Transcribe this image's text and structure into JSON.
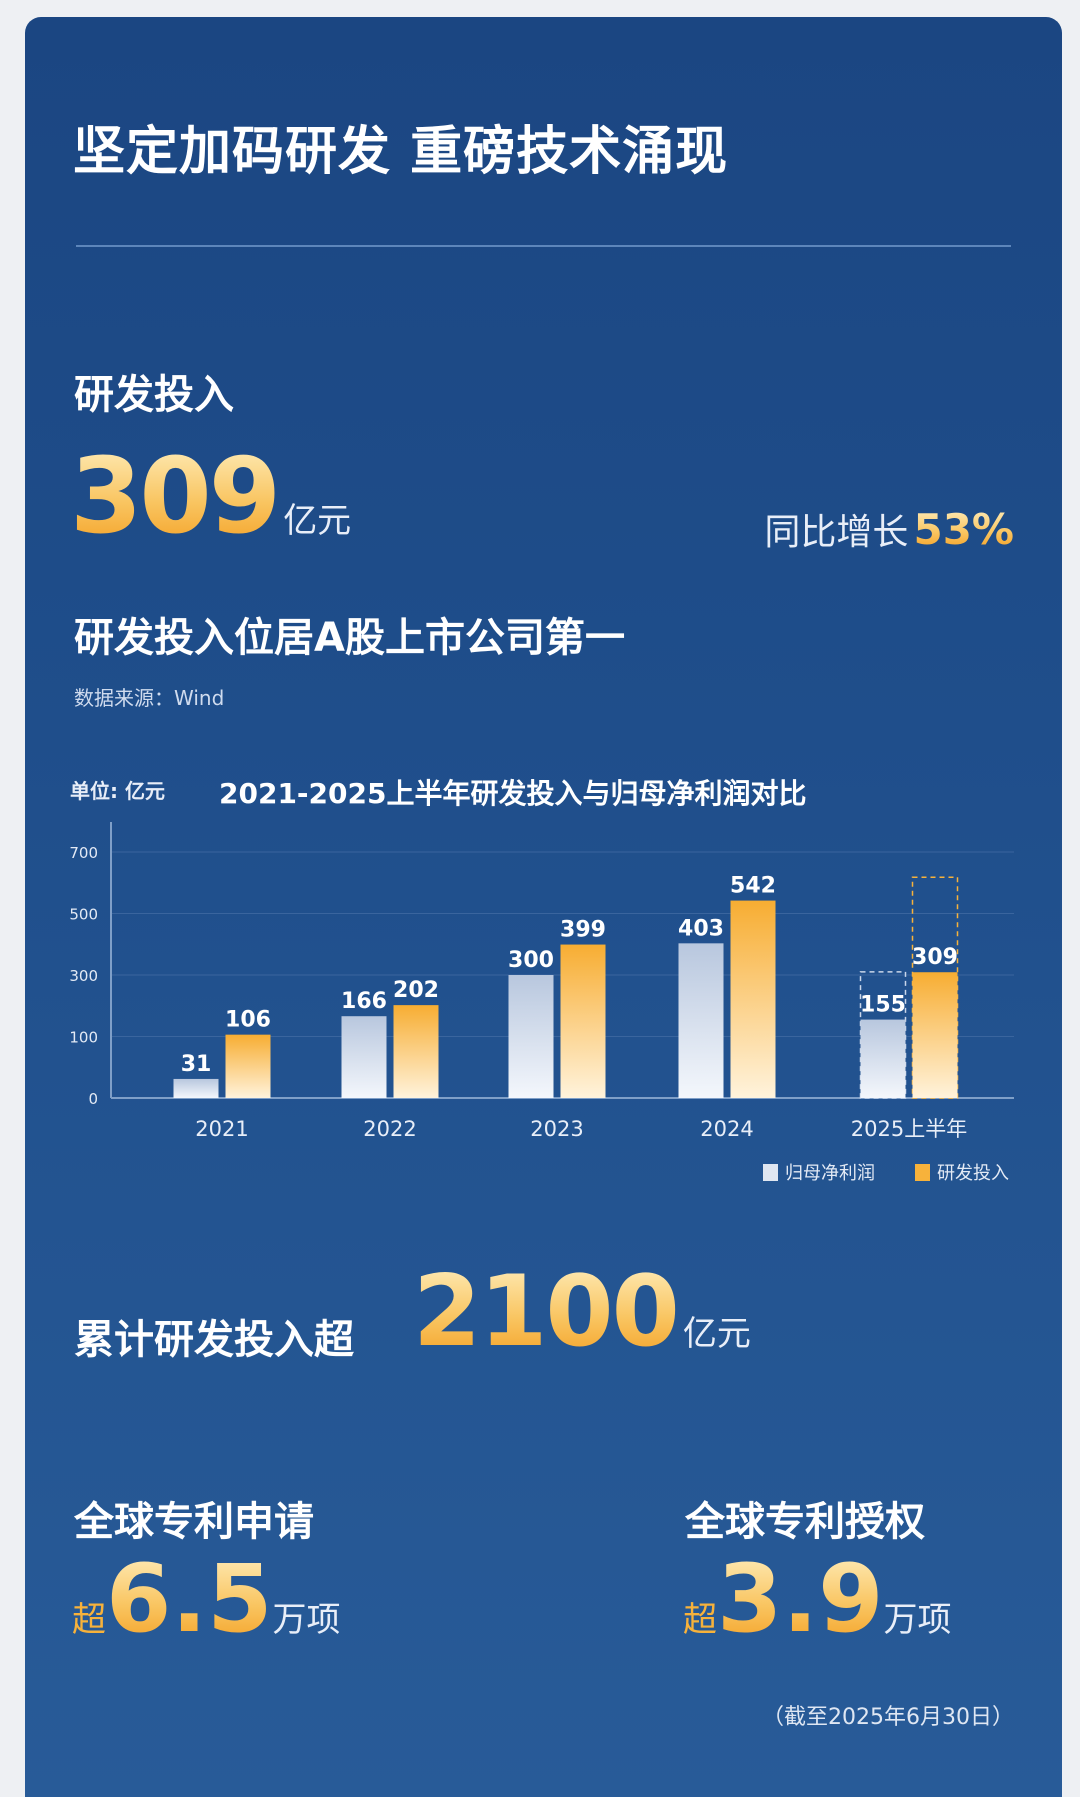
{
  "header": {
    "title": "坚定加码研发 重磅技术涌现"
  },
  "rd": {
    "label": "研发投入",
    "value": "309",
    "unit": "亿元",
    "growth_label": "同比增长",
    "growth_value": "53%"
  },
  "rank": {
    "text": "研发投入位居A股上市公司第一",
    "source": "数据来源：Wind"
  },
  "cumulative": {
    "prefix": "累计研发投入超",
    "value": "2100",
    "unit": "亿元"
  },
  "patents": [
    {
      "label": "全球专利申请",
      "prefix": "超",
      "value": "6.5",
      "unit": "万项"
    },
    {
      "label": "全球专利授权",
      "prefix": "超",
      "value": "3.9",
      "unit": "万项"
    }
  ],
  "footnote": "（截至2025年6月30日）",
  "colors": {
    "accent": "#f7b23b",
    "profit": "#dfe6f1",
    "background": "#1f4e8b"
  },
  "chart_data": {
    "type": "bar",
    "title": "2021-2025上半年研发投入与归母净利润对比",
    "unit_label": "单位: 亿元",
    "categories": [
      "2021",
      "2022",
      "2023",
      "2024",
      "2025上半年"
    ],
    "y_ticks": [
      "0",
      "100",
      "300",
      "500",
      "700"
    ],
    "series": [
      {
        "name": "归母净利润",
        "values": [
          31,
          166,
          300,
          403,
          155
        ],
        "color": "#dfe6f1"
      },
      {
        "name": "研发投入",
        "values": [
          106,
          202,
          399,
          542,
          309
        ],
        "color": "#f7b23b"
      }
    ],
    "legend": "bottom-right",
    "grid": true
  }
}
